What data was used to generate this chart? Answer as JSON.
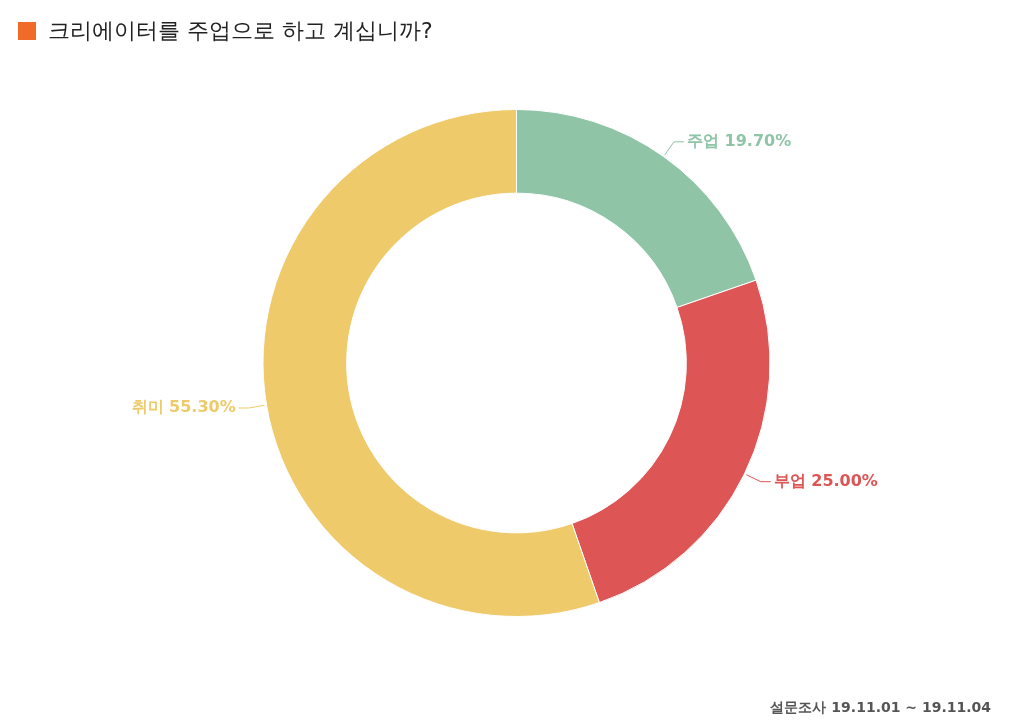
{
  "chart_data": {
    "type": "donut",
    "title": "크리에이터를 주업으로 하고 계십니까?",
    "categories": [
      "주업",
      "부업",
      "취미"
    ],
    "values": [
      19.7,
      25.0,
      55.3
    ],
    "value_labels": [
      "19.70%",
      "25.00%",
      "55.30%"
    ],
    "colors": [
      "#8fc4a7",
      "#dd5555",
      "#eeca6a"
    ],
    "legend": false,
    "annotations": [
      "설문조사 19.11.01 ~ 19.11.04"
    ]
  }
}
